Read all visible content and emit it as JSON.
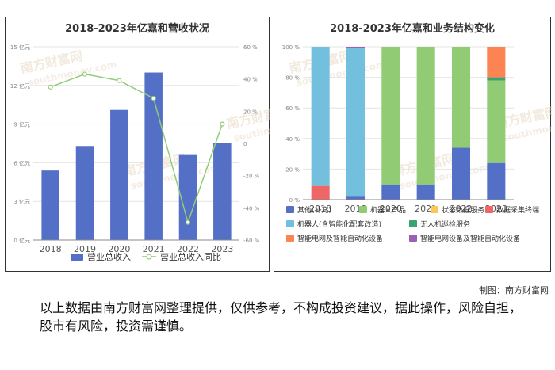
{
  "chart_data": [
    {
      "type": "bar",
      "title": "2018-2023年亿嘉和营收状况",
      "categories": [
        "2018",
        "2019",
        "2020",
        "2021",
        "2022",
        "2023"
      ],
      "series": [
        {
          "name": "营业总收入",
          "kind": "bar",
          "axis": "left",
          "values": [
            5.4,
            7.3,
            10.1,
            13.0,
            6.6,
            7.5
          ]
        },
        {
          "name": "营业总收入同比",
          "kind": "line",
          "axis": "right",
          "values": [
            35,
            43,
            39,
            28,
            -49,
            12
          ]
        }
      ],
      "y_left": {
        "ticks": [
          "0 亿元",
          "3 亿元",
          "6 亿元",
          "9 亿元",
          "12 亿元",
          "15 亿元"
        ],
        "ylim": [
          0,
          15
        ]
      },
      "y_right": {
        "ticks": [
          "-60 %",
          "-40 %",
          "-20 %",
          "0",
          "20 %",
          "40 %",
          "60 %"
        ],
        "ylim": [
          -60,
          60
        ]
      },
      "colors": {
        "bar": "#5470c6",
        "line": "#91cc75"
      },
      "legend": "bottom",
      "grid": true
    },
    {
      "type": "bar",
      "stacked": true,
      "title": "2018-2023年亿嘉和业务结构变化",
      "categories": [
        "2018",
        "2019",
        "2020",
        "2021",
        "2022",
        "2023"
      ],
      "series": [
        {
          "name": "其他(补充)",
          "color": "#5470c6",
          "values": [
            0,
            2,
            10,
            10,
            34,
            24
          ]
        },
        {
          "name": "机器人产品",
          "color": "#91cc75",
          "values": [
            0,
            0,
            90,
            90,
            66,
            54
          ]
        },
        {
          "name": "状态数据服务",
          "color": "#fac858",
          "values": [
            0,
            0,
            0,
            0,
            0,
            0
          ]
        },
        {
          "name": "数据采集终端",
          "color": "#ee6666",
          "values": [
            9,
            0,
            0,
            0,
            0,
            0
          ]
        },
        {
          "name": "机器人(含智能化配套改造)",
          "color": "#73c0de",
          "values": [
            91,
            97,
            0,
            0,
            0,
            0
          ]
        },
        {
          "name": "无人机巡检服务",
          "color": "#3ba272",
          "values": [
            0,
            0,
            0,
            0,
            0,
            2
          ]
        },
        {
          "name": "智能电网及智能自动化设备",
          "color": "#fc8452",
          "values": [
            0,
            0,
            0,
            0,
            0,
            20
          ]
        },
        {
          "name": "智能电网设备及智能自动化设备",
          "color": "#9a60b4",
          "values": [
            0,
            1,
            0,
            0,
            0,
            0
          ]
        }
      ],
      "y_ticks": [
        "0 %",
        "20 %",
        "40 %",
        "60 %",
        "80 %",
        "100 %"
      ],
      "ylim": [
        0,
        100
      ],
      "legend": "bottom",
      "grid": true
    }
  ],
  "watermark": {
    "text_cn": "南方财富网",
    "text_en": "southmoney.com"
  },
  "credit": "制图：南方财富网",
  "disclaimer": "以上数据由南方财富网整理提供，仅供参考，不构成投资建议，据此操作，风险自担，股市有风险，投资需谨慎。"
}
